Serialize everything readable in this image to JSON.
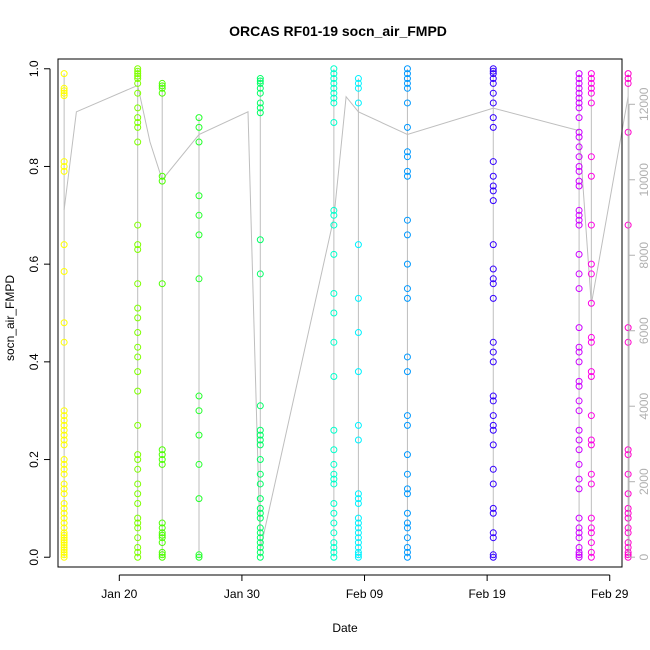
{
  "chart_data": {
    "type": "scatter",
    "title": "ORCAS RF01-19 socn_air_FMPD",
    "xlabel": "Date",
    "ylabel": "socn_air_FMPD",
    "right_axis_label": "",
    "x_axis": {
      "type": "date",
      "range": [
        "2016-01-15",
        "2016-03-01"
      ],
      "tick_labels": [
        {
          "date": "2016-01-20",
          "label": "Jan 20"
        },
        {
          "date": "2016-01-30",
          "label": "Jan 30"
        },
        {
          "date": "2016-02-09",
          "label": "Feb 09"
        },
        {
          "date": "2016-02-19",
          "label": "Feb 19"
        },
        {
          "date": "2016-02-29",
          "label": "Feb 29"
        }
      ]
    },
    "y_axis": {
      "range": [
        -0.02,
        1.02
      ],
      "ticks": [
        "0.0",
        "0.2",
        "0.4",
        "0.6",
        "0.8",
        "1.0"
      ]
    },
    "y2_axis": {
      "range": [
        -260,
        13200
      ],
      "ticks": [
        "0",
        "2000",
        "4000",
        "6000",
        "8000",
        "10000",
        "12000"
      ],
      "color": "#b0b0b0"
    },
    "grid": false,
    "legend": "none",
    "flights": [
      {
        "date": "2016-01-15",
        "color": "#ffff00",
        "values": [
          0.99,
          0.96,
          0.955,
          0.95,
          0.945,
          0.81,
          0.8,
          0.79,
          0.64,
          0.585,
          0.48,
          0.44,
          0.3,
          0.29,
          0.28,
          0.27,
          0.26,
          0.25,
          0.24,
          0.23,
          0.2,
          0.19,
          0.18,
          0.17,
          0.15,
          0.14,
          0.13,
          0.11,
          0.1,
          0.09,
          0.08,
          0.07,
          0.06,
          0.05,
          0.045,
          0.04,
          0.035,
          0.03,
          0.025,
          0.02,
          0.015,
          0.01,
          0.005,
          0.0
        ]
      },
      {
        "date": "2016-01-21",
        "color": "#7fff00",
        "values": [
          1.0,
          0.995,
          0.99,
          0.985,
          0.98,
          0.97,
          0.95,
          0.92,
          0.9,
          0.89,
          0.88,
          0.85,
          0.68,
          0.64,
          0.63,
          0.56,
          0.51,
          0.49,
          0.46,
          0.43,
          0.41,
          0.38,
          0.34,
          0.27,
          0.21,
          0.2,
          0.18,
          0.15,
          0.13,
          0.11,
          0.08,
          0.07,
          0.06,
          0.04,
          0.02,
          0.01,
          0.0
        ]
      },
      {
        "date": "2016-01-23",
        "color": "#4cff00",
        "values": [
          0.97,
          0.965,
          0.96,
          0.95,
          0.78,
          0.77,
          0.56,
          0.22,
          0.21,
          0.2,
          0.19,
          0.07,
          0.06,
          0.05,
          0.045,
          0.04,
          0.03,
          0.01,
          0.005,
          0.0
        ]
      },
      {
        "date": "2016-01-26",
        "color": "#22ff2a",
        "values": [
          0.9,
          0.88,
          0.85,
          0.74,
          0.7,
          0.66,
          0.57,
          0.33,
          0.3,
          0.25,
          0.19,
          0.12,
          0.005,
          0.0
        ]
      },
      {
        "date": "2016-01-31",
        "color": "#00ff66",
        "values": [
          0.98,
          0.975,
          0.97,
          0.96,
          0.95,
          0.93,
          0.92,
          0.91,
          0.65,
          0.58,
          0.31,
          0.26,
          0.25,
          0.24,
          0.23,
          0.2,
          0.17,
          0.15,
          0.12,
          0.1,
          0.09,
          0.08,
          0.06,
          0.05,
          0.04,
          0.03,
          0.02,
          0.01,
          0.0
        ]
      },
      {
        "date": "2016-02-06",
        "color": "#00ffcc",
        "values": [
          1.0,
          0.99,
          0.98,
          0.97,
          0.96,
          0.95,
          0.94,
          0.93,
          0.89,
          0.71,
          0.7,
          0.68,
          0.62,
          0.54,
          0.5,
          0.44,
          0.37,
          0.26,
          0.22,
          0.19,
          0.17,
          0.16,
          0.15,
          0.11,
          0.09,
          0.07,
          0.05,
          0.03,
          0.02,
          0.01,
          0.0
        ]
      },
      {
        "date": "2016-02-08",
        "color": "#00f2ff",
        "values": [
          0.98,
          0.97,
          0.96,
          0.93,
          0.64,
          0.53,
          0.46,
          0.38,
          0.27,
          0.24,
          0.13,
          0.12,
          0.11,
          0.08,
          0.07,
          0.06,
          0.05,
          0.04,
          0.03,
          0.02,
          0.01,
          0.005,
          0.0
        ]
      },
      {
        "date": "2016-02-12",
        "color": "#0099ff",
        "values": [
          1.0,
          0.99,
          0.98,
          0.97,
          0.96,
          0.93,
          0.88,
          0.83,
          0.82,
          0.79,
          0.78,
          0.69,
          0.66,
          0.6,
          0.55,
          0.53,
          0.41,
          0.38,
          0.29,
          0.27,
          0.21,
          0.17,
          0.14,
          0.13,
          0.09,
          0.07,
          0.06,
          0.04,
          0.02,
          0.01,
          0.0
        ]
      },
      {
        "date": "2016-02-19",
        "color": "#3300ff",
        "values": [
          1.0,
          0.995,
          0.99,
          0.98,
          0.97,
          0.95,
          0.93,
          0.9,
          0.88,
          0.81,
          0.78,
          0.76,
          0.75,
          0.73,
          0.64,
          0.59,
          0.57,
          0.56,
          0.53,
          0.44,
          0.42,
          0.4,
          0.33,
          0.32,
          0.29,
          0.27,
          0.26,
          0.23,
          0.18,
          0.15,
          0.1,
          0.09,
          0.05,
          0.04,
          0.005,
          0.0
        ]
      },
      {
        "date": "2016-02-26",
        "color": "#cc00ff",
        "values": [
          0.99,
          0.98,
          0.97,
          0.96,
          0.95,
          0.94,
          0.93,
          0.92,
          0.9,
          0.87,
          0.86,
          0.84,
          0.82,
          0.8,
          0.79,
          0.77,
          0.76,
          0.71,
          0.7,
          0.69,
          0.68,
          0.62,
          0.58,
          0.55,
          0.47,
          0.43,
          0.42,
          0.4,
          0.36,
          0.35,
          0.32,
          0.3,
          0.26,
          0.24,
          0.22,
          0.19,
          0.16,
          0.14,
          0.08,
          0.06,
          0.05,
          0.04,
          0.02,
          0.01,
          0.005,
          0.0
        ]
      },
      {
        "date": "2016-02-27",
        "color": "#ff00e6",
        "values": [
          0.99,
          0.98,
          0.97,
          0.96,
          0.95,
          0.93,
          0.82,
          0.78,
          0.68,
          0.6,
          0.58,
          0.52,
          0.45,
          0.44,
          0.38,
          0.37,
          0.29,
          0.24,
          0.23,
          0.17,
          0.15,
          0.08,
          0.06,
          0.05,
          0.03,
          0.01,
          0.0
        ]
      },
      {
        "date": "2016-03-01",
        "color": "#ff00cc",
        "values": [
          0.99,
          0.98,
          0.97,
          0.87,
          0.68,
          0.47,
          0.44,
          0.22,
          0.21,
          0.17,
          0.13,
          0.1,
          0.09,
          0.08,
          0.06,
          0.05,
          0.03,
          0.02,
          0.01,
          0.005,
          0.0
        ]
      }
    ],
    "altitude_line": {
      "color": "#bebebe",
      "points": [
        {
          "date": "2016-01-15",
          "altitude": 9200
        },
        {
          "date": "2016-01-16",
          "altitude": 11800
        },
        {
          "date": "2016-01-21",
          "altitude": 12500
        },
        {
          "date": "2016-01-22",
          "altitude": 11000
        },
        {
          "date": "2016-01-23",
          "altitude": 10000
        },
        {
          "date": "2016-01-26",
          "altitude": 11200
        },
        {
          "date": "2016-01-30",
          "altitude": 11800
        },
        {
          "date": "2016-01-31",
          "altitude": 200
        },
        {
          "date": "2016-02-06",
          "altitude": 9000
        },
        {
          "date": "2016-02-07",
          "altitude": 12200
        },
        {
          "date": "2016-02-08",
          "altitude": 11800
        },
        {
          "date": "2016-02-12",
          "altitude": 11200
        },
        {
          "date": "2016-02-19",
          "altitude": 11900
        },
        {
          "date": "2016-02-26",
          "altitude": 11300
        },
        {
          "date": "2016-02-27",
          "altitude": 6700
        },
        {
          "date": "2016-03-01",
          "altitude": 12200
        }
      ]
    }
  }
}
